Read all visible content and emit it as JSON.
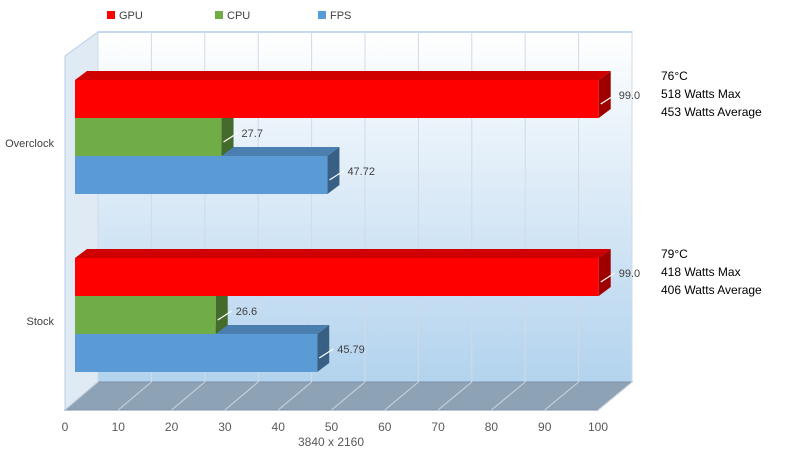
{
  "chart_data": {
    "type": "bar",
    "orientation": "horizontal",
    "categories": [
      "Overclock",
      "Stock"
    ],
    "series": [
      {
        "name": "GPU",
        "color": "#ff0000",
        "values": [
          99.0,
          99.0
        ],
        "labels": [
          "99.0",
          "99.0"
        ]
      },
      {
        "name": "CPU",
        "color": "#70ad47",
        "values": [
          27.7,
          26.6
        ],
        "labels": [
          "27.7",
          "26.6"
        ]
      },
      {
        "name": "FPS",
        "color": "#5b9bd5",
        "values": [
          47.72,
          45.79
        ],
        "labels": [
          "47.72",
          "45.79"
        ]
      }
    ],
    "xlabel": "3840 x 2160",
    "ylabel": "",
    "xlim": [
      0,
      100
    ],
    "xticks": [
      "0",
      "10",
      "20",
      "30",
      "40",
      "50",
      "60",
      "70",
      "80",
      "90",
      "100"
    ],
    "grid": true,
    "legend": "top-left",
    "annotations": [
      {
        "category": "Overclock",
        "lines": [
          "76°C",
          "518 Watts Max",
          "453 Watts Average"
        ]
      },
      {
        "category": "Stock",
        "lines": [
          "79°C",
          "418 Watts Max",
          "406 Watts Average"
        ]
      }
    ]
  }
}
